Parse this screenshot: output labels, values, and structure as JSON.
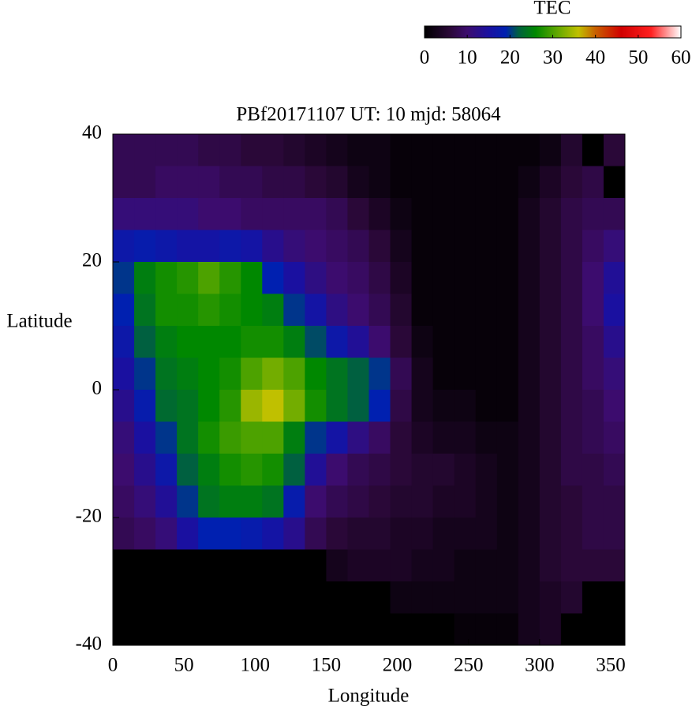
{
  "chart_data": {
    "type": "heatmap",
    "title": "PBf20171107  UT: 10  mjd: 58064",
    "xlabel": "Longitude",
    "ylabel": "Latitude",
    "x": [
      7.5,
      22.5,
      37.5,
      52.5,
      67.5,
      82.5,
      97.5,
      112.5,
      127.5,
      142.5,
      157.5,
      172.5,
      187.5,
      202.5,
      217.5,
      232.5,
      247.5,
      262.5,
      277.5,
      292.5,
      307.5,
      322.5,
      337.5,
      352.5
    ],
    "y": [
      37.5,
      32.5,
      27.5,
      22.5,
      17.5,
      12.5,
      7.5,
      2.5,
      -2.5,
      -7.5,
      -12.5,
      -17.5,
      -22.5,
      -27.5,
      -32.5,
      -37.5
    ],
    "values": [
      [
        8,
        8,
        8,
        8,
        7,
        7,
        6,
        6,
        5,
        4,
        3,
        2,
        2,
        1,
        1,
        1,
        1,
        1,
        1,
        1,
        2,
        5,
        0,
        6
      ],
      [
        8,
        8,
        9,
        9,
        9,
        8,
        8,
        7,
        7,
        6,
        5,
        3,
        2,
        1,
        1,
        1,
        1,
        1,
        1,
        2,
        4,
        6,
        7,
        0
      ],
      [
        11,
        11,
        11,
        11,
        10,
        10,
        9,
        9,
        9,
        9,
        8,
        6,
        4,
        2,
        1,
        1,
        1,
        1,
        1,
        3,
        5,
        7,
        8,
        8
      ],
      [
        17,
        18,
        17,
        16,
        16,
        17,
        16,
        13,
        11,
        10,
        9,
        8,
        6,
        3,
        1,
        1,
        1,
        1,
        1,
        3,
        5,
        7,
        9,
        11
      ],
      [
        20,
        25,
        27,
        28,
        30,
        28,
        26,
        19,
        15,
        12,
        10,
        9,
        7,
        4,
        1,
        1,
        1,
        1,
        1,
        3,
        5,
        7,
        10,
        14
      ],
      [
        19,
        24,
        27,
        27,
        28,
        27,
        26,
        25,
        20,
        16,
        12,
        10,
        8,
        5,
        1,
        1,
        1,
        1,
        1,
        3,
        5,
        7,
        10,
        15
      ],
      [
        17,
        22,
        25,
        26,
        26,
        26,
        27,
        27,
        25,
        21,
        17,
        14,
        10,
        6,
        2,
        1,
        1,
        1,
        1,
        3,
        5,
        7,
        9,
        13
      ],
      [
        15,
        20,
        24,
        25,
        26,
        27,
        30,
        32,
        30,
        26,
        24,
        22,
        20,
        8,
        3,
        1,
        1,
        1,
        1,
        3,
        5,
        7,
        9,
        11
      ],
      [
        13,
        18,
        23,
        24,
        26,
        28,
        34,
        36,
        32,
        27,
        24,
        22,
        19,
        7,
        3,
        2,
        2,
        1,
        1,
        3,
        5,
        7,
        8,
        10
      ],
      [
        11,
        15,
        20,
        24,
        27,
        29,
        30,
        30,
        25,
        20,
        16,
        12,
        9,
        6,
        4,
        3,
        3,
        2,
        2,
        3,
        5,
        7,
        8,
        9
      ],
      [
        10,
        13,
        17,
        22,
        25,
        27,
        28,
        27,
        22,
        14,
        10,
        8,
        7,
        6,
        5,
        5,
        4,
        3,
        2,
        3,
        5,
        7,
        7,
        8
      ],
      [
        9,
        11,
        14,
        20,
        24,
        25,
        25,
        24,
        18,
        10,
        8,
        7,
        6,
        5,
        5,
        4,
        4,
        3,
        2,
        3,
        5,
        6,
        7,
        7
      ],
      [
        8,
        9,
        11,
        15,
        19,
        19,
        18,
        16,
        13,
        8,
        6,
        5,
        5,
        4,
        4,
        3,
        3,
        3,
        2,
        3,
        5,
        6,
        7,
        7
      ],
      [
        0,
        0,
        0,
        0,
        0,
        0,
        0,
        0,
        0,
        0,
        3,
        4,
        4,
        4,
        3,
        3,
        2,
        2,
        2,
        3,
        5,
        6,
        6,
        6
      ],
      [
        0,
        0,
        0,
        0,
        0,
        0,
        0,
        0,
        0,
        0,
        0,
        0,
        0,
        2,
        2,
        2,
        2,
        2,
        2,
        3,
        4,
        5,
        0,
        0
      ],
      [
        0,
        0,
        0,
        0,
        0,
        0,
        0,
        0,
        0,
        0,
        0,
        0,
        0,
        0,
        0,
        0,
        1,
        1,
        1,
        3,
        4,
        0,
        0,
        0
      ]
    ],
    "xlim": [
      0,
      360
    ],
    "xticks": [
      0,
      50,
      100,
      150,
      200,
      250,
      300,
      350
    ],
    "ylim": [
      -40,
      40
    ],
    "yticks": [
      -40,
      -20,
      0,
      20,
      40
    ],
    "colorbar_label": "TEC",
    "clim": [
      0,
      60
    ],
    "cticks": [
      0,
      10,
      20,
      30,
      40,
      50,
      60
    ],
    "colormap": [
      {
        "value": 0,
        "color": "#000000"
      },
      {
        "value": 6,
        "color": "#2a0838"
      },
      {
        "value": 10,
        "color": "#3c0c6e"
      },
      {
        "value": 15,
        "color": "#1a10a0"
      },
      {
        "value": 19,
        "color": "#0020b0"
      },
      {
        "value": 22,
        "color": "#006040"
      },
      {
        "value": 26,
        "color": "#008800"
      },
      {
        "value": 31,
        "color": "#60a800"
      },
      {
        "value": 36,
        "color": "#c0c000"
      },
      {
        "value": 40,
        "color": "#c86000"
      },
      {
        "value": 46,
        "color": "#d00000"
      },
      {
        "value": 53,
        "color": "#ff2020"
      },
      {
        "value": 60,
        "color": "#ffffff"
      }
    ]
  }
}
